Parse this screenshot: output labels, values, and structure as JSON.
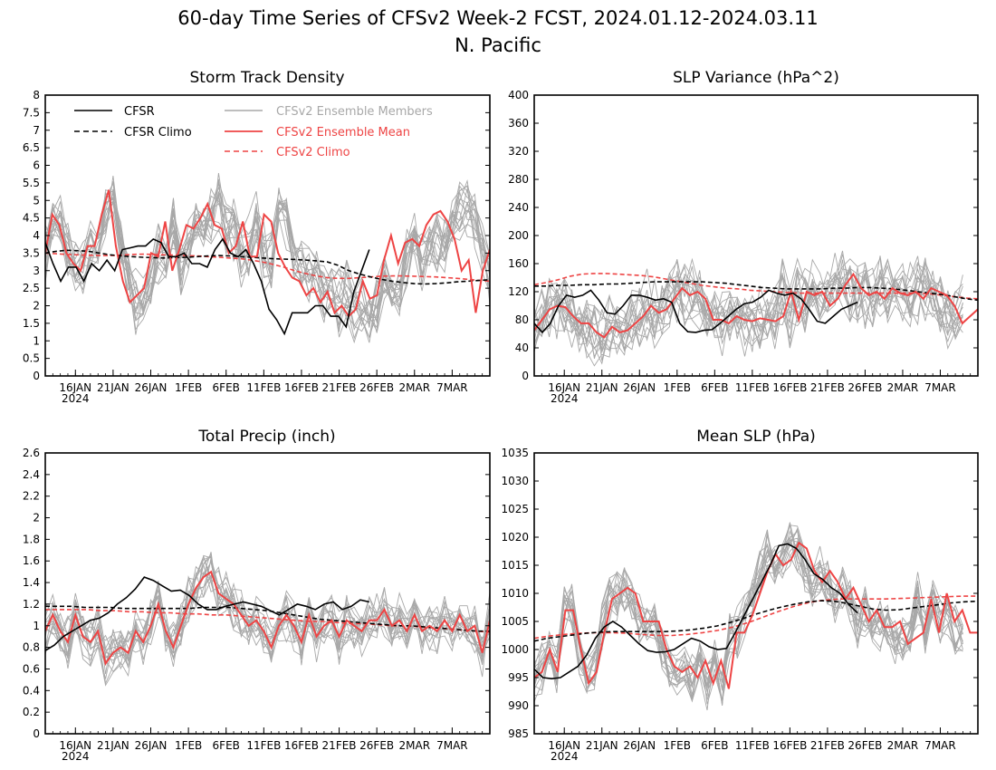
{
  "figure": {
    "title_line1": "60-day Time Series of CFSv2 Week-2 FCST, 2024.01.12-2024.03.11",
    "title_line2": "N. Pacific"
  },
  "legend": {
    "cfsr": "CFSR",
    "cfsr_climo": "CFSR Climo",
    "members": "CFSv2 Ensemble Members",
    "mean": "CFSv2 Ensemble Mean",
    "cfsv2_climo": "CFSv2 Climo"
  },
  "colors": {
    "cfsr": "#000000",
    "members": "#a8a8a8",
    "mean": "#ee4444",
    "climo_red": "#ee4444"
  },
  "x_ticks": [
    "16JAN",
    "21JAN",
    "26JAN",
    "1FEB",
    "6FEB",
    "11FEB",
    "16FEB",
    "21FEB",
    "26FEB",
    "2MAR",
    "7MAR"
  ],
  "x_year_label": "2024",
  "chart_data": [
    {
      "type": "line",
      "title": "Storm Track Density",
      "ylim": [
        0,
        8
      ],
      "yticks": [
        "0",
        "0.5",
        "1",
        "1.5",
        "2",
        "2.5",
        "3",
        "3.5",
        "4",
        "4.5",
        "5",
        "5.5",
        "6",
        "6.5",
        "7",
        "7.5",
        "8"
      ],
      "x": "days 0-59 from 2024-01-12",
      "cfsr": [
        3.8,
        3.2,
        2.7,
        3.1,
        3.1,
        2.7,
        3.2,
        3.0,
        3.3,
        3.0,
        3.6,
        3.65,
        3.7,
        3.7,
        3.9,
        3.8,
        3.4,
        3.4,
        3.5,
        3.2,
        3.2,
        3.1,
        3.6,
        3.9,
        3.5,
        3.4,
        3.6,
        3.2,
        2.7,
        1.9,
        1.6,
        1.2,
        1.8,
        1.8,
        1.8,
        2.0,
        2.0,
        1.7,
        1.7,
        1.4,
        2.4,
        3.0,
        3.6
      ],
      "cfsr_climo": [
        3.5,
        3.55,
        3.58,
        3.57,
        3.55,
        3.5,
        3.45,
        3.42,
        3.4,
        3.38,
        3.37,
        3.36,
        3.37,
        3.38,
        3.4,
        3.42,
        3.43,
        3.42,
        3.4,
        3.38,
        3.36,
        3.34,
        3.33,
        3.32,
        3.3,
        3.28,
        3.25,
        3.15,
        3.0,
        2.9,
        2.82,
        2.75,
        2.7,
        2.66,
        2.63,
        2.62,
        2.63,
        2.65,
        2.68,
        2.7,
        2.72,
        2.74
      ],
      "mean": [
        3.5,
        4.6,
        4.3,
        3.5,
        3.2,
        3.0,
        3.7,
        3.7,
        4.6,
        5.3,
        3.7,
        2.7,
        2.1,
        2.3,
        2.5,
        3.5,
        3.4,
        4.4,
        3.0,
        3.6,
        4.3,
        4.2,
        4.5,
        4.9,
        4.3,
        4.2,
        3.5,
        3.7,
        4.4,
        3.4,
        3.4,
        4.6,
        4.4,
        3.5,
        3.1,
        2.8,
        2.7,
        2.3,
        2.5,
        2.1,
        2.4,
        1.8,
        2.0,
        1.7,
        1.9,
        2.7,
        2.2,
        2.3,
        3.3,
        4.0,
        3.2,
        3.8,
        3.9,
        3.7,
        4.3,
        4.6,
        4.7,
        4.4,
        3.9,
        3.0,
        3.3,
        1.8,
        3.0,
        3.6
      ],
      "cfsv2_climo": [
        3.5,
        3.48,
        3.46,
        3.45,
        3.44,
        3.43,
        3.43,
        3.44,
        3.46,
        3.47,
        3.46,
        3.45,
        3.44,
        3.43,
        3.42,
        3.4,
        3.38,
        3.36,
        3.34,
        3.3,
        3.25,
        3.18,
        3.1,
        3.0,
        2.92,
        2.85,
        2.8,
        2.78,
        2.78,
        2.8,
        2.82,
        2.84,
        2.85,
        2.85,
        2.84,
        2.83,
        2.82,
        2.8,
        2.78,
        2.75,
        2.72,
        2.7
      ]
    },
    {
      "type": "line",
      "title": "SLP Variance (hPa^2)",
      "ylim": [
        0,
        400
      ],
      "yticks": [
        "0",
        "40",
        "80",
        "120",
        "160",
        "200",
        "240",
        "280",
        "320",
        "360",
        "400"
      ],
      "cfsr": [
        75,
        62,
        75,
        100,
        115,
        112,
        115,
        122,
        108,
        90,
        88,
        100,
        115,
        115,
        112,
        108,
        110,
        105,
        75,
        63,
        62,
        65,
        66,
        75,
        85,
        95,
        103,
        105,
        112,
        122,
        118,
        115,
        118,
        110,
        95,
        78,
        75,
        85,
        95,
        100,
        105
      ],
      "cfsr_climo": [
        128,
        128,
        129,
        129,
        130,
        130,
        131,
        131,
        132,
        133,
        134,
        134,
        134,
        134,
        134,
        133,
        132,
        130,
        128,
        126,
        125,
        124,
        124,
        124,
        124,
        125,
        125,
        126,
        126,
        125,
        124,
        122,
        120,
        118,
        116,
        113,
        110,
        108
      ],
      "mean": [
        65,
        80,
        95,
        100,
        98,
        85,
        75,
        75,
        62,
        55,
        70,
        62,
        65,
        75,
        85,
        100,
        90,
        95,
        110,
        125,
        115,
        120,
        110,
        80,
        80,
        75,
        85,
        80,
        78,
        82,
        80,
        78,
        85,
        120,
        80,
        120,
        115,
        120,
        100,
        110,
        130,
        145,
        125,
        115,
        120,
        110,
        125,
        118,
        115,
        120,
        110,
        125,
        120,
        115,
        100,
        75,
        85,
        95
      ],
      "cfsv2_climo": [
        130,
        133,
        137,
        142,
        145,
        146,
        146,
        145,
        144,
        143,
        141,
        138,
        135,
        132,
        129,
        127,
        125,
        124,
        122,
        121,
        120,
        119,
        118,
        118,
        118,
        118,
        118,
        118,
        118,
        118,
        118,
        118,
        118,
        117,
        115,
        113,
        111,
        110
      ]
    },
    {
      "type": "line",
      "title": "Total Precip (inch)",
      "ylim": [
        0,
        2.6
      ],
      "yticks": [
        "0",
        "0.2",
        "0.4",
        "0.6",
        "0.8",
        "1",
        "1.2",
        "1.4",
        "1.6",
        "1.8",
        "2",
        "2.2",
        "2.4",
        "2.6"
      ],
      "cfsr": [
        0.77,
        0.82,
        0.9,
        0.95,
        1.0,
        1.05,
        1.07,
        1.12,
        1.2,
        1.26,
        1.34,
        1.45,
        1.42,
        1.37,
        1.32,
        1.33,
        1.28,
        1.2,
        1.15,
        1.15,
        1.18,
        1.2,
        1.22,
        1.2,
        1.18,
        1.14,
        1.1,
        1.15,
        1.2,
        1.18,
        1.15,
        1.2,
        1.22,
        1.15,
        1.18,
        1.24,
        1.22
      ],
      "cfsr_climo": [
        1.18,
        1.18,
        1.18,
        1.17,
        1.17,
        1.17,
        1.16,
        1.16,
        1.16,
        1.16,
        1.16,
        1.16,
        1.17,
        1.17,
        1.17,
        1.16,
        1.15,
        1.14,
        1.12,
        1.1,
        1.08,
        1.06,
        1.05,
        1.04,
        1.03,
        1.02,
        1.01,
        1.0,
        1.0,
        0.99,
        0.98,
        0.97,
        0.96,
        0.95,
        0.95
      ],
      "mean": [
        0.95,
        1.1,
        0.95,
        0.85,
        1.1,
        0.9,
        0.85,
        0.95,
        0.65,
        0.75,
        0.8,
        0.75,
        0.95,
        0.85,
        1.0,
        1.2,
        0.95,
        0.8,
        1.0,
        1.2,
        1.35,
        1.45,
        1.5,
        1.3,
        1.25,
        1.2,
        1.1,
        1.0,
        1.05,
        0.95,
        0.8,
        1.0,
        1.1,
        1.0,
        0.85,
        1.1,
        0.9,
        1.0,
        1.05,
        0.9,
        1.05,
        1.0,
        0.95,
        1.05,
        1.05,
        1.15,
        1.0,
        1.05,
        0.95,
        1.1,
        0.95,
        1.0,
        0.95,
        1.05,
        0.95,
        1.1,
        0.95,
        1.0,
        0.75,
        1.05
      ],
      "cfsv2_climo": [
        1.15,
        1.15,
        1.15,
        1.15,
        1.14,
        1.14,
        1.13,
        1.13,
        1.12,
        1.12,
        1.11,
        1.11,
        1.1,
        1.1,
        1.09,
        1.08,
        1.07,
        1.06,
        1.05,
        1.04,
        1.04,
        1.03,
        1.02,
        1.02,
        1.01,
        1.0,
        1.0,
        0.99,
        0.98,
        0.97,
        0.96,
        0.95,
        0.94
      ]
    },
    {
      "type": "line",
      "title": "Mean SLP (hPa)",
      "ylim": [
        985,
        1035
      ],
      "yticks": [
        "985",
        "990",
        "995",
        "1000",
        "1005",
        "1010",
        "1015",
        "1020",
        "1025",
        "1030",
        "1035"
      ],
      "cfsr": [
        996.5,
        995,
        994.8,
        995,
        996,
        997,
        999,
        1002,
        1004,
        1005,
        1004,
        1002.5,
        1001,
        999.8,
        999.5,
        999.6,
        1000,
        1001,
        1002,
        1001.5,
        1000.5,
        1000,
        1000.2,
        1003,
        1006,
        1009,
        1012,
        1015,
        1018.5,
        1018.8,
        1018,
        1016,
        1013.5,
        1012.5,
        1011,
        1010,
        1008,
        1006.5
      ],
      "cfsr_climo": [
        1001.5,
        1002,
        1002.3,
        1002.6,
        1002.9,
        1003.1,
        1003.2,
        1003.2,
        1003.2,
        1003.2,
        1003.2,
        1003.3,
        1003.5,
        1003.8,
        1004.2,
        1004.8,
        1005.5,
        1006.3,
        1007,
        1007.6,
        1008.1,
        1008.5,
        1008.7,
        1008.6,
        1008.2,
        1007.7,
        1007.2,
        1007,
        1007.1,
        1007.4,
        1007.7,
        1008,
        1008.3,
        1008.5,
        1008.6
      ],
      "mean": [
        995,
        996,
        1000,
        996,
        1007,
        1007,
        1000,
        994,
        996,
        1003,
        1009,
        1010,
        1011,
        1010,
        1005,
        1005,
        1005,
        1000,
        997,
        996,
        997,
        995,
        998,
        994,
        998,
        993,
        1003,
        1003,
        1006,
        1010,
        1014,
        1017,
        1015,
        1016,
        1019,
        1018,
        1014,
        1012,
        1014,
        1012,
        1009,
        1011,
        1008,
        1005,
        1007,
        1004,
        1004,
        1005,
        1001,
        1002,
        1003,
        1009,
        1003,
        1010,
        1005,
        1007,
        1003,
        1003
      ],
      "cfsv2_climo": [
        1002,
        1002.4,
        1002.7,
        1002.9,
        1003,
        1003,
        1002.9,
        1002.7,
        1002.5,
        1002.5,
        1002.7,
        1003,
        1003.4,
        1004,
        1004.8,
        1005.8,
        1006.8,
        1007.7,
        1008.4,
        1008.8,
        1009,
        1009,
        1009,
        1009,
        1009.1,
        1009.2,
        1009.3,
        1009.4,
        1009.5,
        1009.5
      ]
    }
  ]
}
